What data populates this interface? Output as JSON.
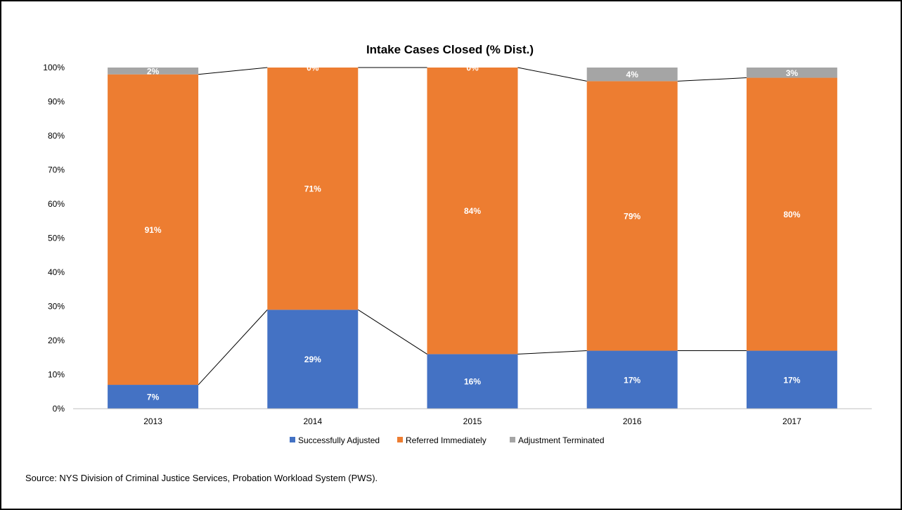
{
  "chart_data": {
    "type": "bar",
    "stacked": true,
    "title": "Intake Cases Closed (% Dist.)",
    "xlabel": "",
    "ylabel": "",
    "categories": [
      "2013",
      "2014",
      "2015",
      "2016",
      "2017"
    ],
    "series": [
      {
        "name": "Successfully Adjusted",
        "color": "#4472C4",
        "values": [
          7,
          29,
          16,
          17,
          17
        ],
        "labels": [
          "7%",
          "29%",
          "16%",
          "17%",
          "17%"
        ]
      },
      {
        "name": "Referred Immediately",
        "color": "#ED7D31",
        "values": [
          91,
          71,
          84,
          79,
          80
        ],
        "labels": [
          "91%",
          "71%",
          "84%",
          "79%",
          "80%"
        ]
      },
      {
        "name": "Adjustment Terminated",
        "color": "#A5A5A5",
        "values": [
          2,
          0,
          0,
          4,
          3
        ],
        "labels": [
          "2%",
          "0%",
          "0%",
          "4%",
          "3%"
        ]
      }
    ],
    "ylim": [
      0,
      100
    ],
    "yticks": [
      "0%",
      "10%",
      "20%",
      "30%",
      "40%",
      "50%",
      "60%",
      "70%",
      "80%",
      "90%",
      "100%"
    ],
    "series_lines": true,
    "grid": false,
    "legend_position": "bottom"
  },
  "source_note": "Source: NYS Division of Criminal Justice Services, Probation Workload System (PWS)."
}
